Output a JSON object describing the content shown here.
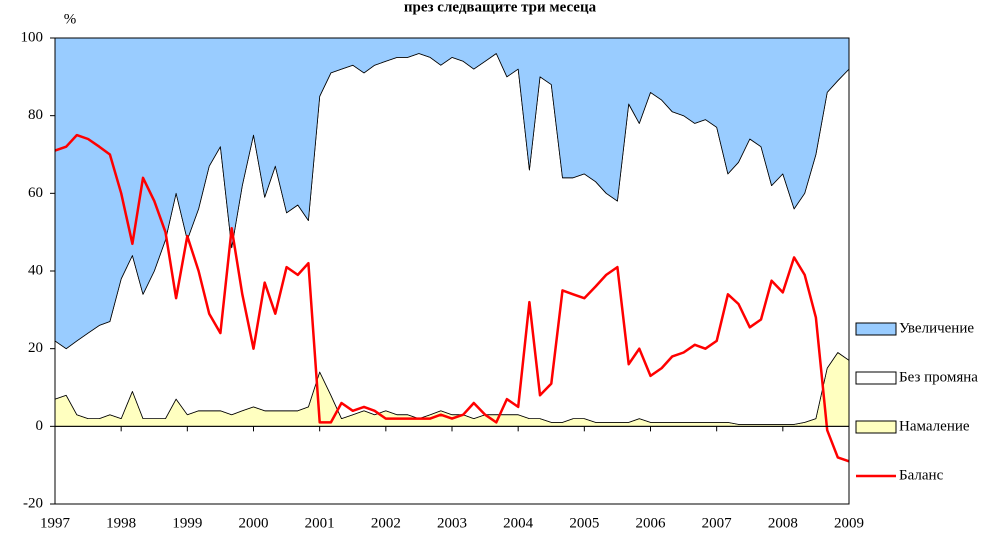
{
  "chart_data": {
    "type": "area",
    "title": "през следващите три месеца",
    "y_label": "%",
    "xlim": [
      1997,
      2009
    ],
    "xticks": [
      1997,
      1998,
      1999,
      2000,
      2001,
      2002,
      2003,
      2004,
      2005,
      2006,
      2007,
      2008,
      2009
    ],
    "ylim": [
      -20,
      100
    ],
    "yticks": [
      -20,
      0,
      20,
      40,
      60,
      80,
      100
    ],
    "legend": "right",
    "x": [
      1997.0,
      1997.17,
      1997.33,
      1997.5,
      1997.67,
      1997.83,
      1998.0,
      1998.17,
      1998.33,
      1998.5,
      1998.67,
      1998.83,
      1999.0,
      1999.17,
      1999.33,
      1999.5,
      1999.67,
      1999.83,
      2000.0,
      2000.17,
      2000.33,
      2000.5,
      2000.67,
      2000.83,
      2001.0,
      2001.17,
      2001.33,
      2001.5,
      2001.67,
      2001.83,
      2002.0,
      2002.17,
      2002.33,
      2002.5,
      2002.67,
      2002.83,
      2003.0,
      2003.17,
      2003.33,
      2003.5,
      2003.67,
      2003.83,
      2004.0,
      2004.17,
      2004.33,
      2004.5,
      2004.67,
      2004.83,
      2005.0,
      2005.17,
      2005.33,
      2005.5,
      2005.67,
      2005.83,
      2006.0,
      2006.17,
      2006.33,
      2006.5,
      2006.67,
      2006.83,
      2007.0,
      2007.17,
      2007.33,
      2007.5,
      2007.67,
      2007.83,
      2008.0,
      2008.17,
      2008.33,
      2008.5,
      2008.67,
      2008.83,
      2009.0
    ],
    "series": [
      {
        "name": "Увеличение",
        "type": "area",
        "color": "#99ccff",
        "values": [
          78,
          80,
          78,
          76,
          74,
          73,
          62,
          56,
          66,
          60,
          52,
          40,
          52,
          44,
          33,
          28,
          54,
          38,
          25,
          41,
          33,
          45,
          43,
          47,
          15,
          9,
          8,
          7,
          9,
          7,
          6,
          5,
          5,
          4,
          5,
          7,
          5,
          6,
          8,
          6,
          4,
          10,
          8,
          34,
          10,
          12,
          36,
          36,
          35,
          37,
          40,
          42,
          17,
          22,
          14,
          16,
          19,
          20,
          22,
          21,
          23,
          35,
          32,
          26,
          28,
          38,
          35,
          44,
          40,
          30,
          14,
          11,
          8
        ]
      },
      {
        "name": "Без промяна",
        "type": "area",
        "color": "#ffffff",
        "values": [
          15,
          12,
          19,
          22,
          24,
          24,
          36,
          35,
          32,
          38,
          46,
          53,
          45,
          52,
          63,
          68,
          43,
          58,
          70,
          55,
          63,
          51,
          53,
          48,
          71,
          83,
          90,
          90,
          87,
          90,
          90,
          92,
          92,
          94,
          92,
          89,
          92,
          91,
          90,
          91,
          93,
          87,
          89,
          64,
          88,
          87,
          63,
          62,
          63,
          62,
          59,
          57,
          82,
          76,
          85,
          83,
          80,
          79,
          77,
          78,
          76,
          64,
          67.5,
          73.5,
          71.5,
          61.5,
          64.5,
          55.5,
          59,
          68,
          71,
          70,
          75
        ]
      },
      {
        "name": "Намаление",
        "type": "area",
        "color": "#ffffc0",
        "values": [
          7,
          8,
          3,
          2,
          2,
          3,
          2,
          9,
          2,
          2,
          2,
          7,
          3,
          4,
          4,
          4,
          3,
          4,
          5,
          4,
          4,
          4,
          4,
          5,
          14,
          8,
          2,
          3,
          4,
          3,
          4,
          3,
          3,
          2,
          3,
          4,
          3,
          3,
          2,
          3,
          3,
          3,
          3,
          2,
          2,
          1,
          1,
          2,
          2,
          1,
          1,
          1,
          1,
          2,
          1,
          1,
          1,
          1,
          1,
          1,
          1,
          1,
          0.5,
          0.5,
          0.5,
          0.5,
          0.5,
          0.5,
          1,
          2,
          15,
          19,
          17
        ]
      },
      {
        "name": "Баланс",
        "type": "line",
        "color": "#ff0000",
        "values": [
          71,
          72,
          75,
          74,
          72,
          70,
          60,
          47,
          64,
          58,
          50,
          33,
          49,
          40,
          29,
          24,
          51,
          34,
          20,
          37,
          29,
          41,
          39,
          42,
          1,
          1,
          6,
          4,
          5,
          4,
          2,
          2,
          2,
          2,
          2,
          3,
          2,
          3,
          6,
          3,
          1,
          7,
          5,
          32,
          8,
          11,
          35,
          34,
          33,
          36,
          39,
          41,
          16,
          20,
          13,
          15,
          18,
          19,
          21,
          20,
          22,
          34,
          31.5,
          25.5,
          27.5,
          37.5,
          34.5,
          43.5,
          39,
          28,
          -1,
          -8,
          -9
        ]
      }
    ]
  }
}
